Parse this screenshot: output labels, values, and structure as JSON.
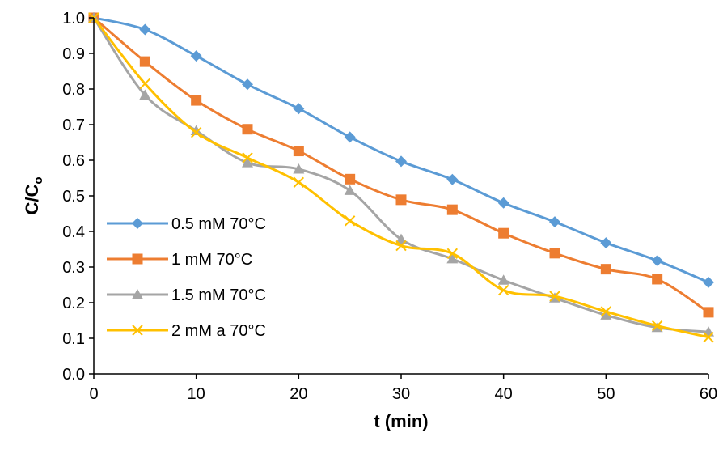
{
  "chart_data": {
    "type": "line",
    "title": "",
    "xlabel": "t (min)",
    "ylabel": "C/C",
    "ylabel_subscript": "o",
    "x": [
      0,
      5,
      10,
      15,
      20,
      25,
      30,
      35,
      40,
      45,
      50,
      55,
      60
    ],
    "xlim": [
      0,
      60
    ],
    "ylim": [
      0,
      1.0
    ],
    "xticks": [
      0,
      10,
      20,
      30,
      40,
      50,
      60
    ],
    "yticks": [
      "0.0",
      "0.1",
      "0.2",
      "0.3",
      "0.4",
      "0.5",
      "0.6",
      "0.7",
      "0.8",
      "0.9",
      "1.0"
    ],
    "grid": false,
    "legend_position": "left",
    "series": [
      {
        "name": "0.5 mM 70°C",
        "color": "#5B9BD5",
        "marker": "diamond",
        "values": [
          1.0,
          0.967,
          0.893,
          0.813,
          0.745,
          0.665,
          0.597,
          0.546,
          0.48,
          0.427,
          0.368,
          0.318,
          0.257
        ]
      },
      {
        "name": "1 mM 70°C",
        "color": "#ED7D31",
        "marker": "square",
        "values": [
          1.0,
          0.877,
          0.768,
          0.687,
          0.626,
          0.547,
          0.489,
          0.461,
          0.395,
          0.339,
          0.294,
          0.266,
          0.173
        ]
      },
      {
        "name": "1.5 mM 70°C",
        "color": "#A5A5A5",
        "marker": "triangle",
        "values": [
          1.0,
          0.783,
          0.683,
          0.593,
          0.575,
          0.515,
          0.378,
          0.323,
          0.263,
          0.213,
          0.165,
          0.13,
          0.118
        ]
      },
      {
        "name": "2 mM a 70°C",
        "color": "#FFC000",
        "marker": "x",
        "values": [
          1.0,
          0.815,
          0.678,
          0.607,
          0.538,
          0.43,
          0.36,
          0.338,
          0.235,
          0.218,
          0.175,
          0.135,
          0.103
        ]
      }
    ]
  }
}
